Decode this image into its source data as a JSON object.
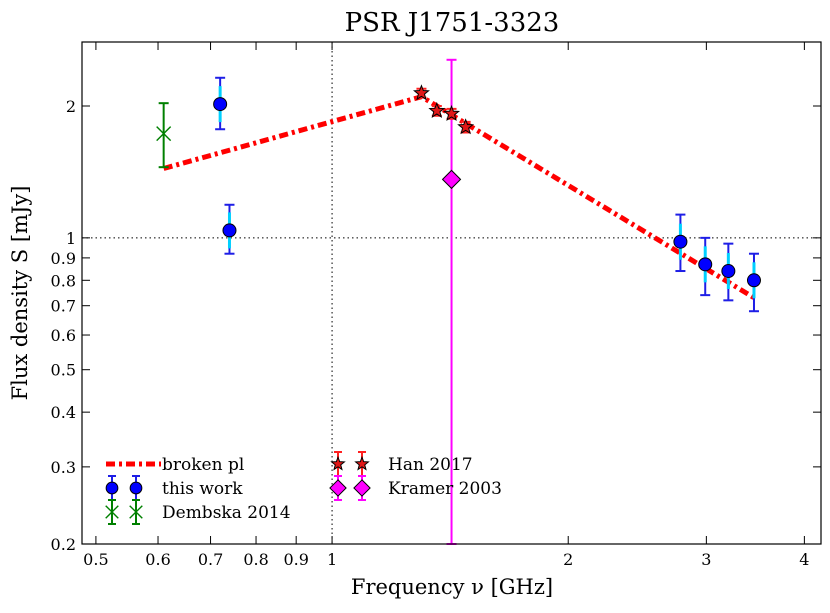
{
  "chart_data": {
    "type": "scatter",
    "title": "PSR J1751-3323",
    "xlabel": "Frequency ν [GHz]",
    "ylabel": "Flux density S [mJy]",
    "xscale": "log",
    "yscale": "log",
    "xlim": [
      0.48,
      4.2
    ],
    "ylim": [
      0.2,
      2.8
    ],
    "x_ticks": [
      {
        "value": 0.5,
        "label": "0.5"
      },
      {
        "value": 0.6,
        "label": "0.6"
      },
      {
        "value": 0.7,
        "label": "0.7"
      },
      {
        "value": 0.8,
        "label": "0.8"
      },
      {
        "value": 0.9,
        "label": "0.9"
      },
      {
        "value": 1,
        "label": "1"
      },
      {
        "value": 2,
        "label": "2"
      },
      {
        "value": 3,
        "label": "3"
      },
      {
        "value": 4,
        "label": "4"
      }
    ],
    "y_ticks": [
      {
        "value": 0.2,
        "label": "0.2"
      },
      {
        "value": 0.3,
        "label": "0.3"
      },
      {
        "value": 0.4,
        "label": "0.4"
      },
      {
        "value": 0.5,
        "label": "0.5"
      },
      {
        "value": 0.6,
        "label": "0.6"
      },
      {
        "value": 0.7,
        "label": "0.7"
      },
      {
        "value": 0.8,
        "label": "0.8"
      },
      {
        "value": 0.9,
        "label": "0.9"
      },
      {
        "value": 1,
        "label": "1"
      },
      {
        "value": 2,
        "label": "2"
      }
    ],
    "reference_lines": [
      {
        "axis": "x",
        "value": 1,
        "style": "dotted"
      },
      {
        "axis": "y",
        "value": 1,
        "style": "dotted"
      }
    ],
    "fit": {
      "name": "broken pl",
      "color": "#ff0000",
      "style": "dash-dot",
      "points": [
        [
          0.61,
          1.44
        ],
        [
          1.3,
          2.1
        ],
        [
          3.45,
          0.73
        ]
      ]
    },
    "series": [
      {
        "name": "this work",
        "marker": "circle",
        "color": "#0000ff",
        "errcolor": "#1e1ee6",
        "points": [
          {
            "x": 0.72,
            "y": 2.02,
            "ylo": 1.77,
            "yhi": 2.32
          },
          {
            "x": 0.74,
            "y": 1.04,
            "ylo": 0.92,
            "yhi": 1.19
          },
          {
            "x": 2.78,
            "y": 0.98,
            "ylo": 0.84,
            "yhi": 1.13
          },
          {
            "x": 2.99,
            "y": 0.87,
            "ylo": 0.74,
            "yhi": 1.0
          },
          {
            "x": 3.2,
            "y": 0.84,
            "ylo": 0.72,
            "yhi": 0.97
          },
          {
            "x": 3.45,
            "y": 0.8,
            "ylo": 0.68,
            "yhi": 0.92
          }
        ]
      },
      {
        "name": "Dembska 2014",
        "marker": "x",
        "color": "#008000",
        "errcolor": "#008000",
        "points": [
          {
            "x": 0.61,
            "y": 1.73,
            "ylo": 1.45,
            "yhi": 2.03
          }
        ]
      },
      {
        "name": "Han 2017",
        "marker": "star",
        "color": "#e01818",
        "errcolor": "#ff2020",
        "points": [
          {
            "x": 1.3,
            "y": 2.14,
            "ylo": 2.09,
            "yhi": 2.19
          },
          {
            "x": 1.36,
            "y": 1.95,
            "ylo": 1.9,
            "yhi": 2.0
          },
          {
            "x": 1.42,
            "y": 1.92,
            "ylo": 1.87,
            "yhi": 1.97
          },
          {
            "x": 1.48,
            "y": 1.79,
            "ylo": 1.74,
            "yhi": 1.84
          }
        ]
      },
      {
        "name": "Kramer 2003",
        "marker": "diamond",
        "color": "#ff00ff",
        "errcolor": "#ff00ff",
        "points": [
          {
            "x": 1.42,
            "y": 1.36,
            "ylo": 0.2,
            "yhi": 2.55
          }
        ]
      }
    ],
    "legend": {
      "placement": "lower-left",
      "columns": [
        [
          "broken pl",
          "this work",
          "Dembska 2014"
        ],
        [
          "Han 2017",
          "Kramer 2003"
        ]
      ]
    }
  }
}
